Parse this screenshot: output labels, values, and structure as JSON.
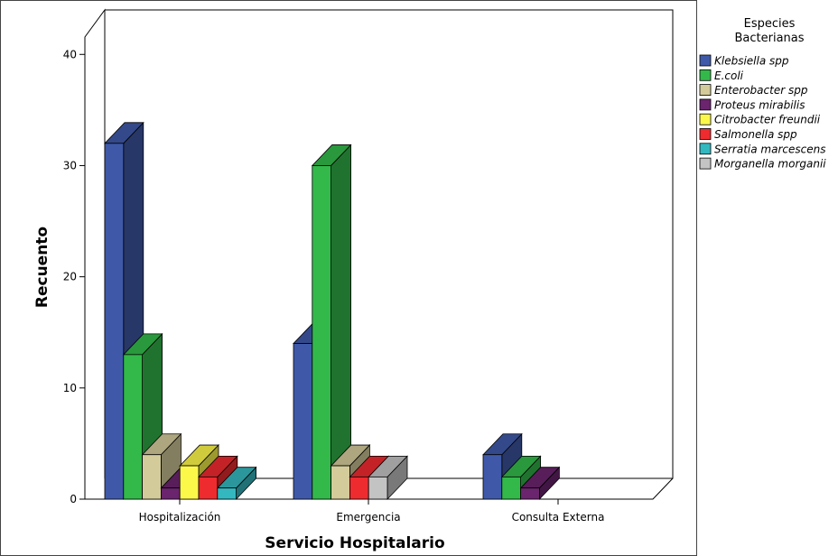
{
  "chart_data": {
    "type": "bar",
    "style": "3d-clustered",
    "ylabel": "Recuento",
    "xlabel": "Servicio Hospitalario",
    "ylim": [
      0,
      44
    ],
    "yticks": [
      0,
      10,
      20,
      30,
      40
    ],
    "categories": [
      "Hospitalización",
      "Emergencia",
      "Consulta Externa"
    ],
    "legend_title": [
      "Especies",
      "Bacterianas"
    ],
    "legend_position": "right",
    "series": [
      {
        "name": "Klebsiella spp",
        "color": "#3f59a8",
        "values": [
          32,
          14,
          4
        ]
      },
      {
        "name": "E.coli",
        "color": "#33b94a",
        "values": [
          13,
          30,
          2
        ]
      },
      {
        "name": "Enterobacter spp",
        "color": "#d3cb9a",
        "values": [
          4,
          3,
          0
        ]
      },
      {
        "name": "Proteus mirabilis",
        "color": "#6b246e",
        "values": [
          1,
          0,
          1
        ]
      },
      {
        "name": "Citrobacter freundii",
        "color": "#fcf84a",
        "values": [
          3,
          0,
          0
        ]
      },
      {
        "name": "Salmonella spp",
        "color": "#ee2b2f",
        "values": [
          2,
          2,
          0
        ]
      },
      {
        "name": "Serratia marcescens",
        "color": "#34b8c0",
        "values": [
          1,
          0,
          0
        ]
      },
      {
        "name": "Morganella morganii",
        "color": "#c3c3c3",
        "values": [
          0,
          2,
          0
        ]
      }
    ]
  }
}
